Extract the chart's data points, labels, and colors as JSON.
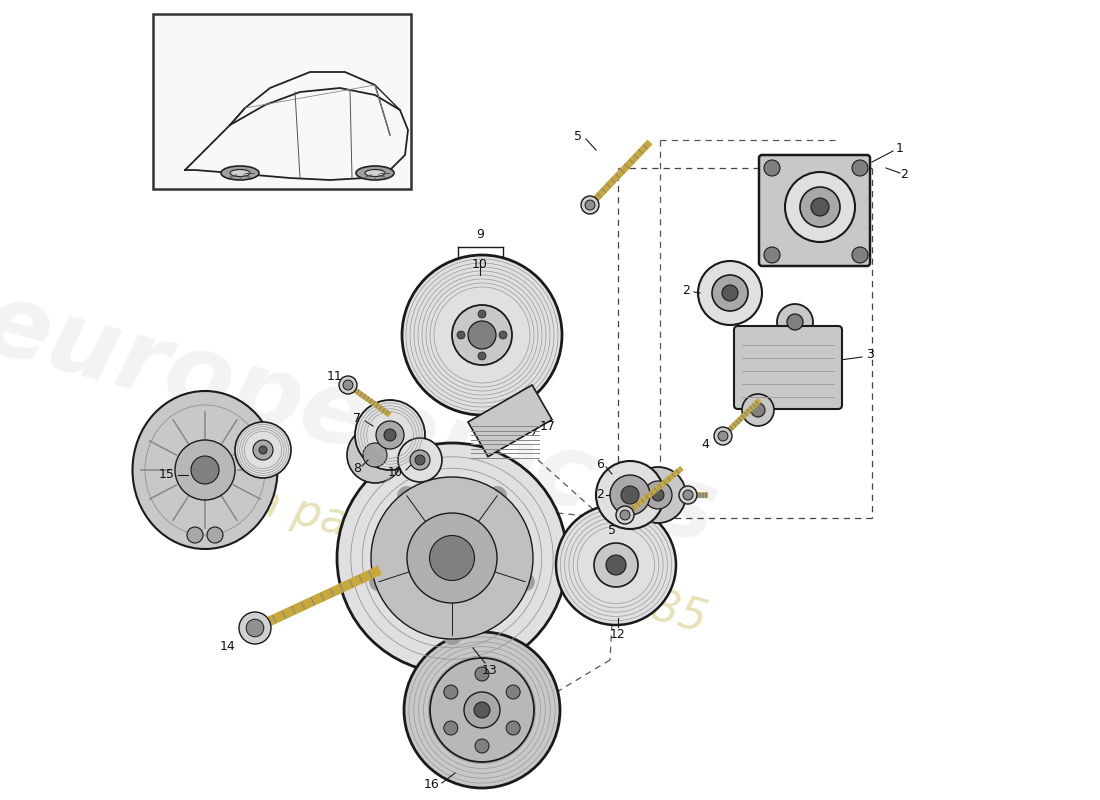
{
  "bg_color": "#ffffff",
  "lc": "#1a1a1a",
  "gray1": "#e0e0e0",
  "gray2": "#c8c8c8",
  "gray3": "#a8a8a8",
  "gray4": "#808080",
  "gray5": "#585858",
  "bolt_color": "#c8a838",
  "dash_color": "#444444",
  "wm1_color": "#cccccc",
  "wm2_color": "#d4c87a",
  "fig_w": 11.0,
  "fig_h": 8.0,
  "dpi": 100
}
